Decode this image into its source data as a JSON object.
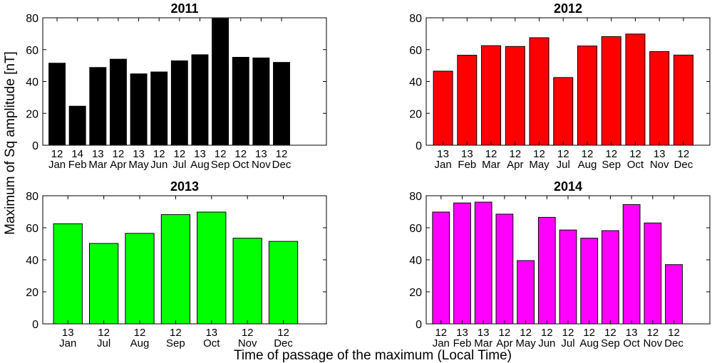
{
  "figure": {
    "ylabel": "Maximum of Sq amplitude [nT]",
    "xlabel": "Time of passage of the maximum (Local Time)"
  },
  "chart_data": [
    {
      "type": "bar",
      "title": "2011",
      "color": "#000000",
      "ylim": [
        0,
        80
      ],
      "yticks": [
        0,
        20,
        40,
        60,
        80
      ],
      "categories": [
        "Jan",
        "Feb",
        "Mar",
        "Apr",
        "May",
        "Jun",
        "Jul",
        "Aug",
        "Sep",
        "Oct",
        "Nov",
        "Dec"
      ],
      "hours": [
        "12",
        "14",
        "13",
        "12",
        "13",
        "12",
        "12",
        "13",
        "12",
        "12",
        "13",
        "12"
      ],
      "values": [
        51.5,
        24.5,
        48.8,
        54,
        44.8,
        46,
        53,
        56.8,
        79.5,
        55.2,
        54.8,
        52
      ],
      "xlim": [
        0.3,
        14.2
      ]
    },
    {
      "type": "bar",
      "title": "2012",
      "color": "#ff0000",
      "ylim": [
        0,
        80
      ],
      "yticks": [
        0,
        20,
        40,
        60,
        80
      ],
      "categories": [
        "Jan",
        "Feb",
        "Mar",
        "Apr",
        "May",
        "Jul",
        "Aug",
        "Sep",
        "Oct",
        "Nov",
        "Dec"
      ],
      "hours": [
        "13",
        "13",
        "12",
        "12",
        "12",
        "12",
        "12",
        "12",
        "12",
        "13",
        "12"
      ],
      "values": [
        46.5,
        56.5,
        62.5,
        62,
        67.5,
        42.5,
        62.3,
        68.2,
        69.8,
        58.8,
        56.6
      ],
      "xlim": [
        0.3,
        12.1
      ]
    },
    {
      "type": "bar",
      "title": "2013",
      "color": "#00ff00",
      "ylim": [
        0,
        80
      ],
      "yticks": [
        0,
        20,
        40,
        60,
        80
      ],
      "categories": [
        "Jan",
        "Jul",
        "Aug",
        "Sep",
        "Oct",
        "Nov",
        "Dec"
      ],
      "hours": [
        "13",
        "12",
        "12",
        "12",
        "13",
        "12",
        "12"
      ],
      "values": [
        62.5,
        50.2,
        56.5,
        68.2,
        69.8,
        53.5,
        51.5
      ],
      "xlim": [
        0.3,
        8.2
      ]
    },
    {
      "type": "bar",
      "title": "2014",
      "color": "#ff00ff",
      "ylim": [
        0,
        80
      ],
      "yticks": [
        0,
        20,
        40,
        60,
        80
      ],
      "categories": [
        "Jan",
        "Feb",
        "Mar",
        "Apr",
        "May",
        "Jun",
        "Jul",
        "Aug",
        "Sep",
        "Oct",
        "Nov",
        "Dec"
      ],
      "hours": [
        "12",
        "13",
        "13",
        "12",
        "12",
        "12",
        "12",
        "12",
        "12",
        "13",
        "12",
        "12"
      ],
      "values": [
        69.8,
        75.5,
        76,
        68.5,
        39.5,
        66.5,
        58.6,
        53.5,
        58.2,
        74.5,
        63,
        37
      ],
      "xlim": [
        0.3,
        13.7
      ]
    }
  ]
}
